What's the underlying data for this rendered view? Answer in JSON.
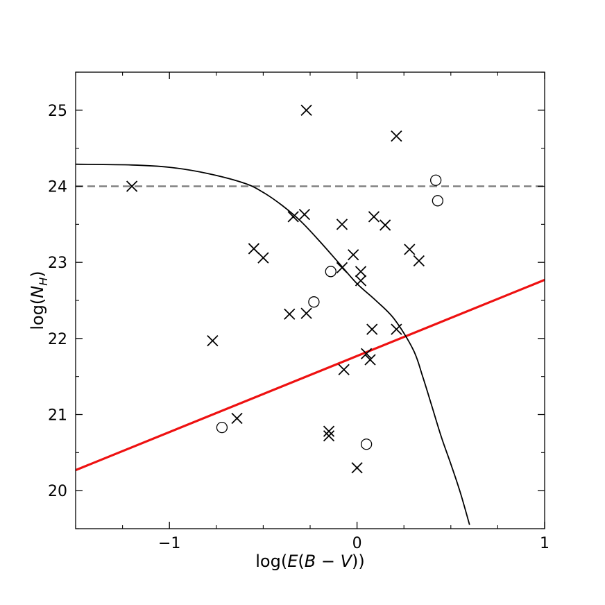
{
  "chart_data": {
    "type": "scatter",
    "xlabel_parts": [
      "log(",
      "E",
      "(",
      "B",
      " − ",
      "V",
      "))"
    ],
    "ylabel_parts": [
      "log(",
      "N",
      "H",
      ")"
    ],
    "xlim": [
      -1.5,
      1.0
    ],
    "ylim": [
      19.5,
      25.5
    ],
    "x_ticks": [
      {
        "value": -1,
        "label": "−1"
      },
      {
        "value": 0,
        "label": "0"
      },
      {
        "value": 1,
        "label": "1"
      }
    ],
    "y_ticks": [
      {
        "value": 20,
        "label": "20"
      },
      {
        "value": 21,
        "label": "21"
      },
      {
        "value": 22,
        "label": "22"
      },
      {
        "value": 23,
        "label": "23"
      },
      {
        "value": 24,
        "label": "24"
      },
      {
        "value": 25,
        "label": "25"
      }
    ],
    "x_minor_ticks": [
      -1.5,
      -1.25,
      -0.75,
      -0.5,
      -0.25,
      0.25,
      0.5,
      0.75
    ],
    "y_minor_ticks": [
      19.5,
      20.5,
      21.5,
      22.5,
      23.5,
      24.5,
      25.5
    ],
    "grid": false,
    "colors": {
      "red_line": "#ee1111",
      "dashed_line": "#808080",
      "markers": "#000000",
      "curve": "#000000"
    },
    "series": [
      {
        "marker": "x",
        "points": [
          [
            -1.2,
            24.0
          ],
          [
            -0.27,
            25.0
          ],
          [
            0.21,
            24.66
          ],
          [
            -0.34,
            23.6
          ],
          [
            -0.28,
            23.63
          ],
          [
            -0.08,
            23.5
          ],
          [
            0.09,
            23.6
          ],
          [
            0.15,
            23.49
          ],
          [
            -0.55,
            23.18
          ],
          [
            -0.5,
            23.06
          ],
          [
            -0.02,
            23.1
          ],
          [
            -0.08,
            22.93
          ],
          [
            0.02,
            22.88
          ],
          [
            0.02,
            22.76
          ],
          [
            0.28,
            23.17
          ],
          [
            0.33,
            23.02
          ],
          [
            -0.36,
            22.32
          ],
          [
            -0.27,
            22.33
          ],
          [
            0.08,
            22.12
          ],
          [
            0.21,
            22.12
          ],
          [
            -0.77,
            21.97
          ],
          [
            0.05,
            21.8
          ],
          [
            0.07,
            21.72
          ],
          [
            -0.07,
            21.59
          ],
          [
            -0.64,
            20.95
          ],
          [
            -0.15,
            20.78
          ],
          [
            -0.15,
            20.72
          ],
          [
            0.0,
            20.3
          ]
        ]
      },
      {
        "marker": "o",
        "points": [
          [
            0.42,
            24.08
          ],
          [
            0.43,
            23.81
          ],
          [
            -0.14,
            22.88
          ],
          [
            -0.23,
            22.48
          ],
          [
            -0.72,
            20.83
          ],
          [
            0.05,
            20.61
          ]
        ]
      }
    ],
    "lines": [
      {
        "style": "solid-red",
        "points": [
          [
            -1.5,
            20.27
          ],
          [
            1.0,
            22.77
          ]
        ]
      },
      {
        "style": "dashed-gray",
        "points": [
          [
            -1.5,
            24.0
          ],
          [
            1.0,
            24.0
          ]
        ]
      }
    ],
    "curve": {
      "style": "solid-black",
      "points": [
        [
          -1.5,
          24.29
        ],
        [
          -1.2,
          24.28
        ],
        [
          -1.0,
          24.25
        ],
        [
          -0.8,
          24.17
        ],
        [
          -0.6,
          24.04
        ],
        [
          -0.5,
          23.92
        ],
        [
          -0.4,
          23.75
        ],
        [
          -0.3,
          23.54
        ],
        [
          -0.2,
          23.28
        ],
        [
          -0.1,
          23.0
        ],
        [
          0.0,
          22.72
        ],
        [
          0.1,
          22.5
        ],
        [
          0.2,
          22.25
        ],
        [
          0.3,
          21.85
        ],
        [
          0.35,
          21.5
        ],
        [
          0.4,
          21.1
        ],
        [
          0.45,
          20.7
        ],
        [
          0.5,
          20.35
        ],
        [
          0.55,
          19.98
        ],
        [
          0.6,
          19.55
        ]
      ]
    }
  }
}
